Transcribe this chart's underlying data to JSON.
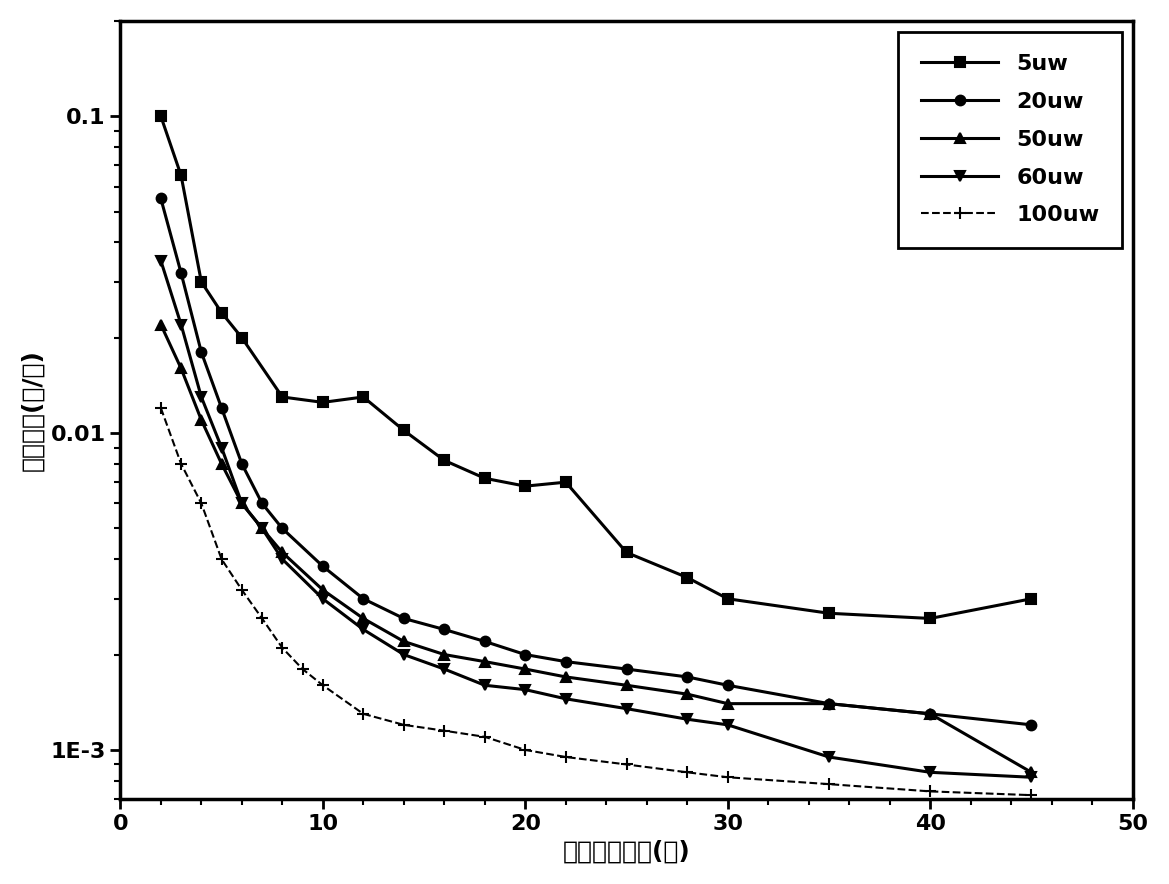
{
  "title": "",
  "xlabel": "调制信号周期(秒)",
  "ylabel": "光群速度(米/秒)",
  "xlim": [
    0,
    50
  ],
  "ylim_log": [
    0.0007,
    0.2
  ],
  "series": [
    {
      "label": "5uw",
      "x": [
        2,
        3,
        4,
        5,
        6,
        8,
        10,
        12,
        14,
        16,
        18,
        20,
        22,
        25,
        28,
        30,
        35,
        40,
        45
      ],
      "y": [
        0.1,
        0.065,
        0.03,
        0.024,
        0.02,
        0.013,
        0.0125,
        0.013,
        0.0102,
        0.0082,
        0.0072,
        0.0068,
        0.007,
        0.0042,
        0.0035,
        0.003,
        0.0027,
        0.0026,
        0.003
      ],
      "marker": "s",
      "linestyle": "-",
      "linewidth": 2.2,
      "color": "#000000",
      "markersize": 7
    },
    {
      "label": "20uw",
      "x": [
        2,
        3,
        4,
        5,
        6,
        7,
        8,
        10,
        12,
        14,
        16,
        18,
        20,
        22,
        25,
        28,
        30,
        35,
        40,
        45
      ],
      "y": [
        0.055,
        0.032,
        0.018,
        0.012,
        0.008,
        0.006,
        0.005,
        0.0038,
        0.003,
        0.0026,
        0.0024,
        0.0022,
        0.002,
        0.0019,
        0.0018,
        0.0017,
        0.0016,
        0.0014,
        0.0013,
        0.0012
      ],
      "marker": "o",
      "linestyle": "-",
      "linewidth": 2.2,
      "color": "#000000",
      "markersize": 7
    },
    {
      "label": "50uw",
      "x": [
        2,
        3,
        4,
        5,
        6,
        7,
        8,
        10,
        12,
        14,
        16,
        18,
        20,
        22,
        25,
        28,
        30,
        35,
        40,
        45
      ],
      "y": [
        0.022,
        0.016,
        0.011,
        0.008,
        0.006,
        0.005,
        0.0042,
        0.0032,
        0.0026,
        0.0022,
        0.002,
        0.0019,
        0.0018,
        0.0017,
        0.0016,
        0.0015,
        0.0014,
        0.0014,
        0.0013,
        0.00085
      ],
      "marker": "^",
      "linestyle": "-",
      "linewidth": 2.2,
      "color": "#000000",
      "markersize": 7
    },
    {
      "label": "60uw",
      "x": [
        2,
        3,
        4,
        5,
        6,
        7,
        8,
        10,
        12,
        14,
        16,
        18,
        20,
        22,
        25,
        28,
        30,
        35,
        40,
        45
      ],
      "y": [
        0.035,
        0.022,
        0.013,
        0.009,
        0.006,
        0.005,
        0.004,
        0.003,
        0.0024,
        0.002,
        0.0018,
        0.0016,
        0.00155,
        0.00145,
        0.00135,
        0.00125,
        0.0012,
        0.00095,
        0.00085,
        0.00082
      ],
      "marker": "v",
      "linestyle": "-",
      "linewidth": 2.2,
      "color": "#000000",
      "markersize": 7
    },
    {
      "label": "100uw",
      "x": [
        2,
        3,
        4,
        5,
        6,
        7,
        8,
        9,
        10,
        12,
        14,
        16,
        18,
        20,
        22,
        25,
        28,
        30,
        35,
        40,
        45
      ],
      "y": [
        0.012,
        0.008,
        0.006,
        0.004,
        0.0032,
        0.0026,
        0.0021,
        0.0018,
        0.0016,
        0.0013,
        0.0012,
        0.00115,
        0.0011,
        0.001,
        0.00095,
        0.0009,
        0.00085,
        0.00082,
        0.00078,
        0.00074,
        0.00072
      ],
      "marker": "+",
      "linestyle": "--",
      "linewidth": 1.5,
      "color": "#000000",
      "markersize": 9
    }
  ],
  "legend_loc": "upper right",
  "background_color": "#ffffff",
  "tick_label_fontsize": 16,
  "axis_label_fontsize": 18,
  "legend_fontsize": 16
}
